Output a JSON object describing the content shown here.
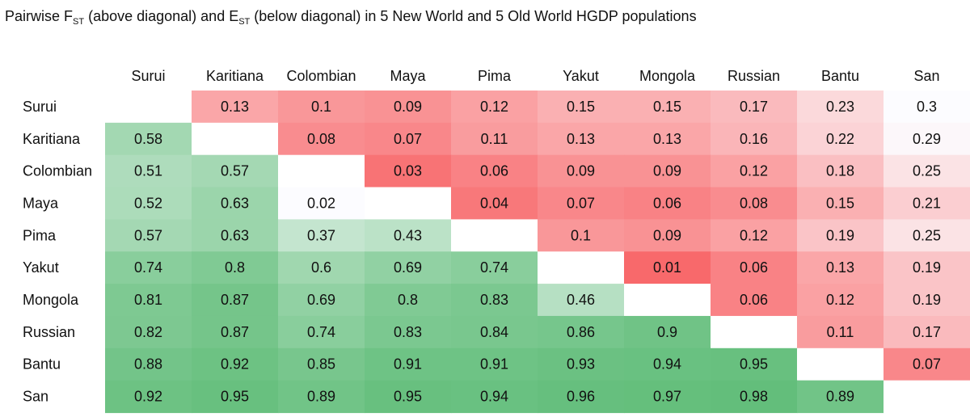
{
  "chart_data": {
    "type": "heatmap",
    "title": {
      "part1": "Pairwise F",
      "sub1": "ST",
      "part2": " (above diagonal) and E",
      "sub2": "ST",
      "part3": " (below diagonal) in 5 New World and 5 Old World HGDP populations"
    },
    "rows": [
      "Surui",
      "Karitiana",
      "Colombian",
      "Maya",
      "Pima",
      "Yakut",
      "Mongola",
      "Russian",
      "Bantu",
      "San"
    ],
    "columns": [
      "Surui",
      "Karitiana",
      "Colombian",
      "Maya",
      "Pima",
      "Yakut",
      "Mongola",
      "Russian",
      "Bantu",
      "San"
    ],
    "values": [
      [
        null,
        0.13,
        0.1,
        0.09,
        0.12,
        0.15,
        0.15,
        0.17,
        0.23,
        0.3
      ],
      [
        0.58,
        null,
        0.08,
        0.07,
        0.11,
        0.13,
        0.13,
        0.16,
        0.22,
        0.29
      ],
      [
        0.51,
        0.57,
        null,
        0.03,
        0.06,
        0.09,
        0.09,
        0.12,
        0.18,
        0.25
      ],
      [
        0.52,
        0.63,
        0.02,
        null,
        0.04,
        0.07,
        0.06,
        0.08,
        0.15,
        0.21
      ],
      [
        0.57,
        0.63,
        0.37,
        0.43,
        null,
        0.1,
        0.09,
        0.12,
        0.19,
        0.25
      ],
      [
        0.74,
        0.8,
        0.6,
        0.69,
        0.74,
        null,
        0.01,
        0.06,
        0.13,
        0.19
      ],
      [
        0.81,
        0.87,
        0.69,
        0.8,
        0.83,
        0.46,
        null,
        0.06,
        0.12,
        0.19
      ],
      [
        0.82,
        0.87,
        0.74,
        0.83,
        0.84,
        0.86,
        0.9,
        null,
        0.11,
        0.17
      ],
      [
        0.88,
        0.92,
        0.85,
        0.91,
        0.91,
        0.93,
        0.94,
        0.95,
        null,
        0.07
      ],
      [
        0.92,
        0.95,
        0.89,
        0.95,
        0.94,
        0.96,
        0.97,
        0.98,
        0.89,
        null
      ]
    ],
    "color_scale": {
      "above_diagonal": {
        "low": "#f8696b",
        "high": "#fcfcff"
      },
      "below_diagonal": {
        "low": "#fcfcff",
        "high": "#63be7b"
      },
      "diagonal": "#ffffff"
    }
  }
}
